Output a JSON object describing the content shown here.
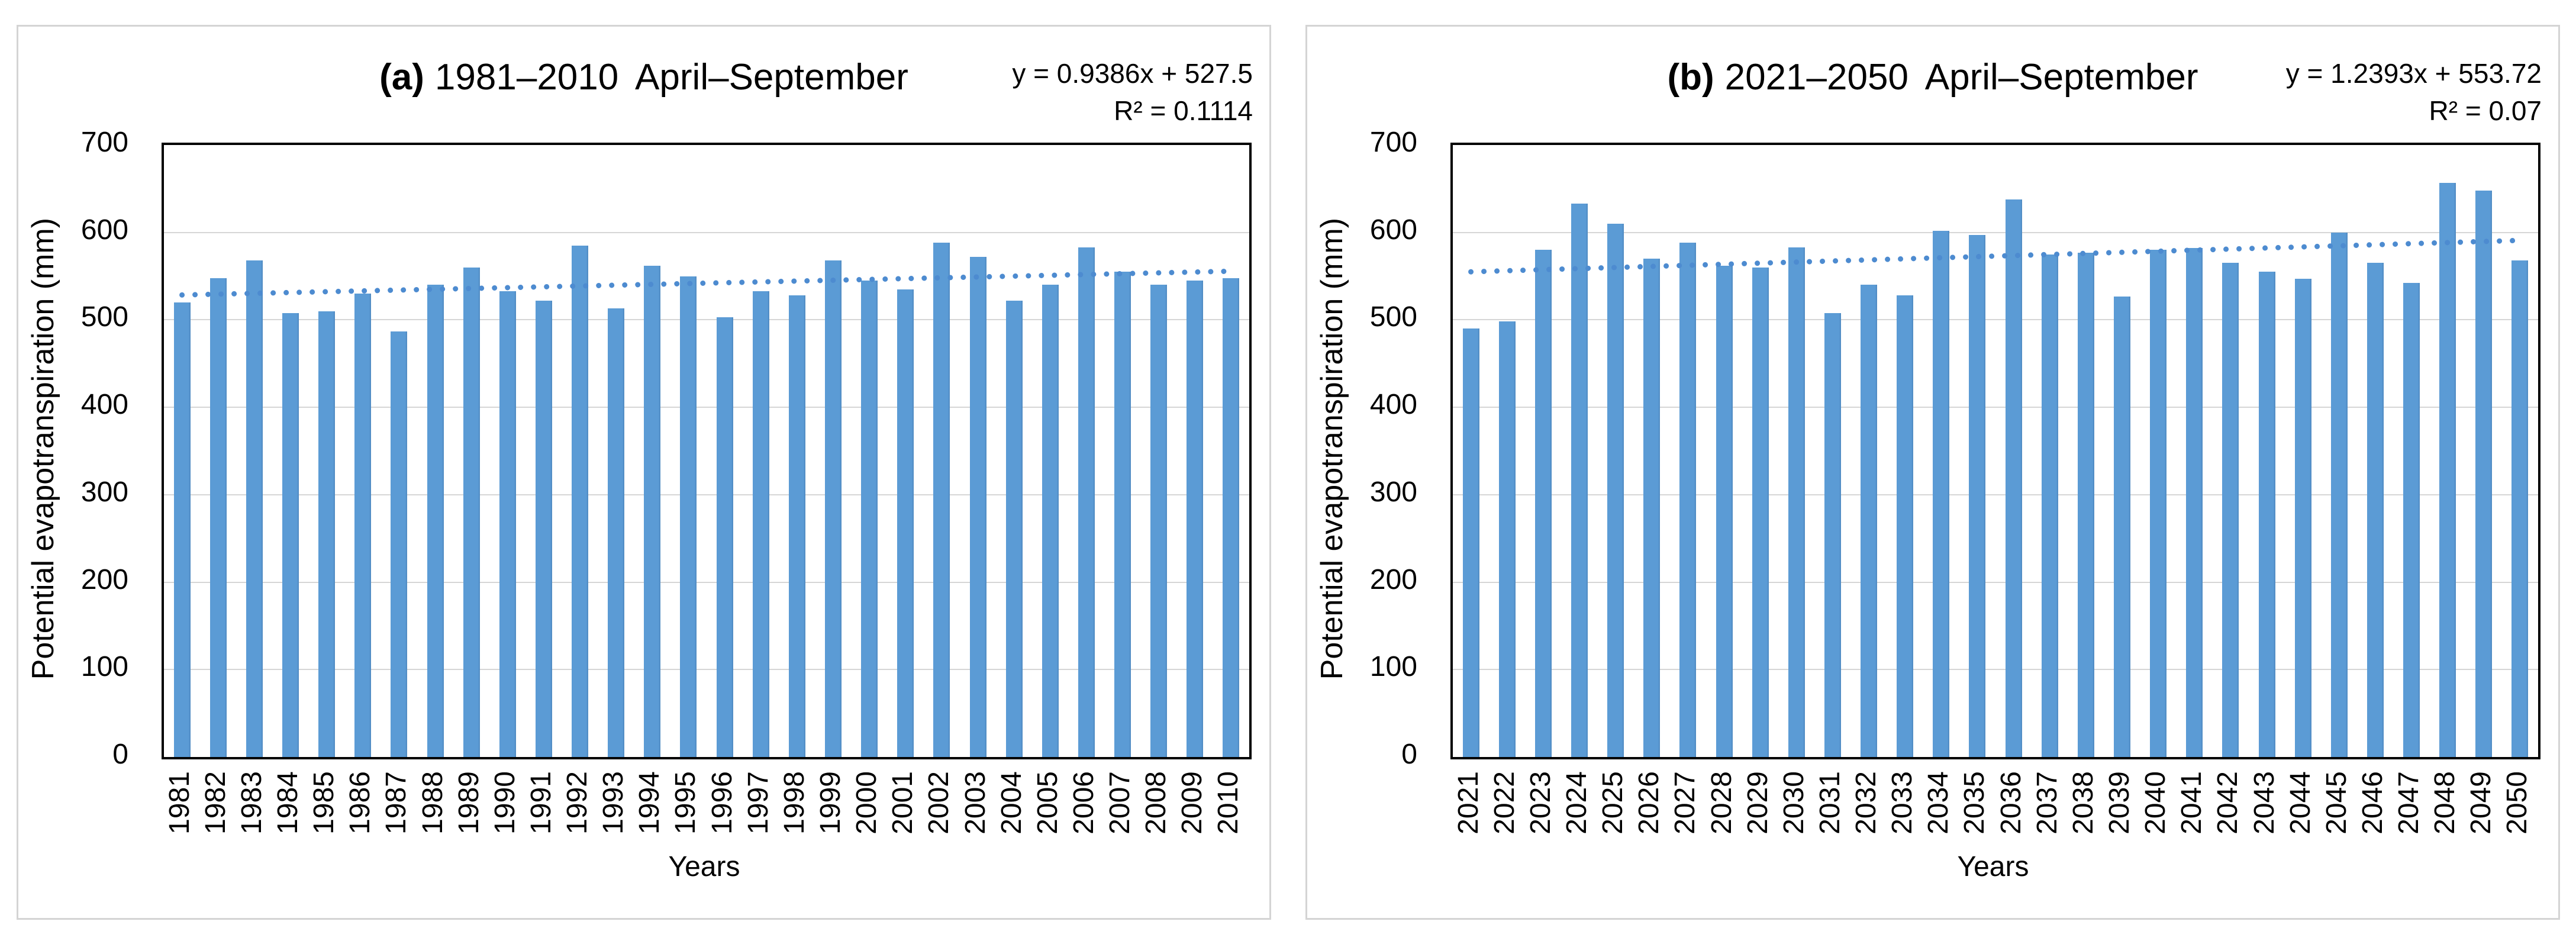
{
  "figure": {
    "background": "#ffffff",
    "panel_border_color": "#d4d4d4",
    "plot_border_color": "#000000",
    "gridline_color": "#d6d6d6"
  },
  "chart_data": [
    {
      "type": "bar",
      "panel_label": "(a)",
      "title": "1981–2010  April–September",
      "equation": "y = 0.9386x + 527.5",
      "r_squared": "R² = 0.1114",
      "xlabel": "Years",
      "ylabel": "Potential evapotranspiration (mm)",
      "ylim": [
        0,
        700
      ],
      "yticks": [
        0,
        100,
        200,
        300,
        400,
        500,
        600,
        700
      ],
      "grid": "horizontal",
      "legend": "none",
      "bar_color": "#5B9BD5",
      "trend_color": "#4d8bd0",
      "categories": [
        "1981",
        "1982",
        "1983",
        "1984",
        "1985",
        "1986",
        "1987",
        "1988",
        "1989",
        "1990",
        "1991",
        "1992",
        "1993",
        "1994",
        "1995",
        "1996",
        "1997",
        "1998",
        "1999",
        "2000",
        "2001",
        "2002",
        "2003",
        "2004",
        "2005",
        "2006",
        "2007",
        "2008",
        "2009",
        "2010"
      ],
      "values": [
        520,
        548,
        568,
        508,
        510,
        530,
        487,
        540,
        560,
        533,
        522,
        585,
        513,
        562,
        550,
        503,
        533,
        528,
        568,
        545,
        535,
        588,
        572,
        522,
        540,
        583,
        555,
        540,
        545,
        548
      ],
      "trendline": {
        "slope": 0.9386,
        "intercept": 527.5,
        "style": "dotted"
      }
    },
    {
      "type": "bar",
      "panel_label": "(b)",
      "title": "2021–2050  April–September",
      "equation": "y = 1.2393x + 553.72",
      "r_squared": "R² = 0.07",
      "xlabel": "Years",
      "ylabel": "Potential evapotranspiration (mm)",
      "ylim": [
        0,
        700
      ],
      "yticks": [
        0,
        100,
        200,
        300,
        400,
        500,
        600,
        700
      ],
      "grid": "horizontal",
      "legend": "none",
      "bar_color": "#5B9BD5",
      "trend_color": "#4d8bd0",
      "categories": [
        "2021",
        "2022",
        "2023",
        "2024",
        "2025",
        "2026",
        "2027",
        "2028",
        "2029",
        "2030",
        "2031",
        "2032",
        "2033",
        "2034",
        "2035",
        "2036",
        "2037",
        "2038",
        "2039",
        "2040",
        "2041",
        "2042",
        "2043",
        "2044",
        "2045",
        "2046",
        "2047",
        "2048",
        "2049",
        "2050"
      ],
      "values": [
        490,
        498,
        580,
        633,
        610,
        570,
        588,
        562,
        560,
        583,
        508,
        540,
        528,
        602,
        597,
        638,
        575,
        577,
        527,
        580,
        582,
        565,
        555,
        547,
        600,
        565,
        542,
        657,
        648,
        568
      ],
      "trendline": {
        "slope": 1.2393,
        "intercept": 553.72,
        "style": "dotted"
      }
    }
  ]
}
